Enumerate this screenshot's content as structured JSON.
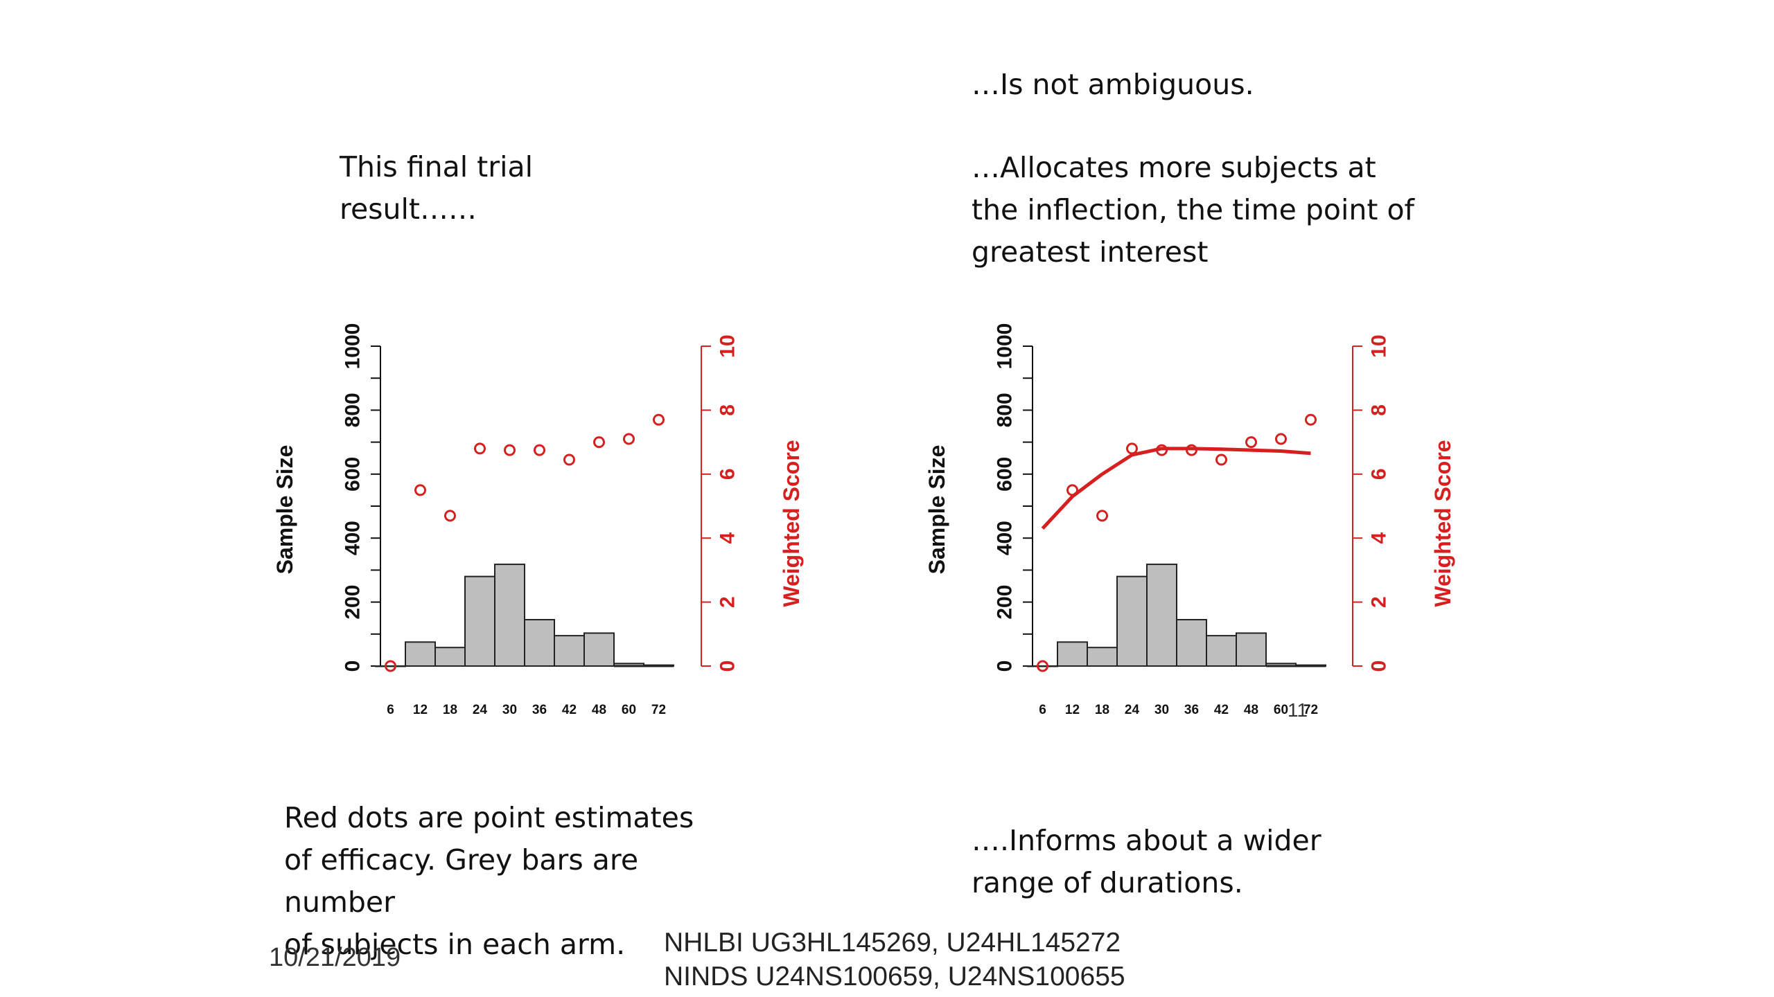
{
  "slide": {
    "left_heading": [
      "This final trial",
      "result……"
    ],
    "right_heading_1": "…Is not ambiguous.",
    "right_heading_2": [
      "…Allocates more subjects at",
      "the inflection, the time point of",
      "greatest interest"
    ],
    "left_caption": [
      "Red dots are point estimates",
      "of efficacy.  Grey bars are",
      "number",
      "of subjects in each arm."
    ],
    "right_caption": [
      "….Informs about a wider",
      "range of durations."
    ],
    "footer_date": "10/21/2019",
    "footer_grants": [
      "NHLBI UG3HL145269, U24HL145272",
      "NINDS U24NS100659, U24NS100655"
    ],
    "slide_number": "11"
  },
  "colors": {
    "bar_fill": "#bebebe",
    "bar_stroke": "#222222",
    "score_red": "#d62020",
    "axis_dark": "#111111"
  },
  "chart_data": [
    {
      "type": "bar",
      "categories": [
        "6",
        "12",
        "18",
        "24",
        "30",
        "36",
        "42",
        "48",
        "60",
        "72"
      ],
      "series": [
        {
          "name": "Sample Size",
          "axis": "left",
          "values": [
            0,
            75,
            58,
            280,
            318,
            145,
            95,
            103,
            8,
            3
          ]
        },
        {
          "name": "Weighted Score",
          "axis": "right",
          "mark": "points",
          "values": [
            0,
            5.5,
            4.7,
            6.8,
            6.75,
            6.75,
            6.45,
            7.0,
            7.1,
            7.7
          ]
        }
      ],
      "ylabel": "Sample Size",
      "ylim": [
        0,
        1000
      ],
      "yticks": [
        0,
        200,
        400,
        600,
        800,
        1000
      ],
      "y2label": "Weighted Score",
      "y2lim": [
        0,
        10
      ],
      "y2ticks": [
        0,
        2,
        4,
        6,
        8,
        10
      ],
      "fit_curve": null
    },
    {
      "type": "bar",
      "categories": [
        "6",
        "12",
        "18",
        "24",
        "30",
        "36",
        "42",
        "48",
        "60",
        "72"
      ],
      "series": [
        {
          "name": "Sample Size",
          "axis": "left",
          "values": [
            0,
            75,
            58,
            280,
            318,
            145,
            95,
            103,
            8,
            3
          ]
        },
        {
          "name": "Weighted Score",
          "axis": "right",
          "mark": "points",
          "values": [
            0,
            5.5,
            4.7,
            6.8,
            6.75,
            6.75,
            6.45,
            7.0,
            7.1,
            7.7
          ]
        }
      ],
      "ylabel": "Sample Size",
      "ylim": [
        0,
        1000
      ],
      "yticks": [
        0,
        200,
        400,
        600,
        800,
        1000
      ],
      "y2label": "Weighted Score",
      "y2lim": [
        0,
        10
      ],
      "y2ticks": [
        0,
        2,
        4,
        6,
        8,
        10
      ],
      "fit_curve": {
        "name": "Fitted curve",
        "values": [
          4.3,
          5.3,
          6.0,
          6.6,
          6.8,
          6.8,
          6.78,
          6.75,
          6.72,
          6.65
        ]
      }
    }
  ]
}
